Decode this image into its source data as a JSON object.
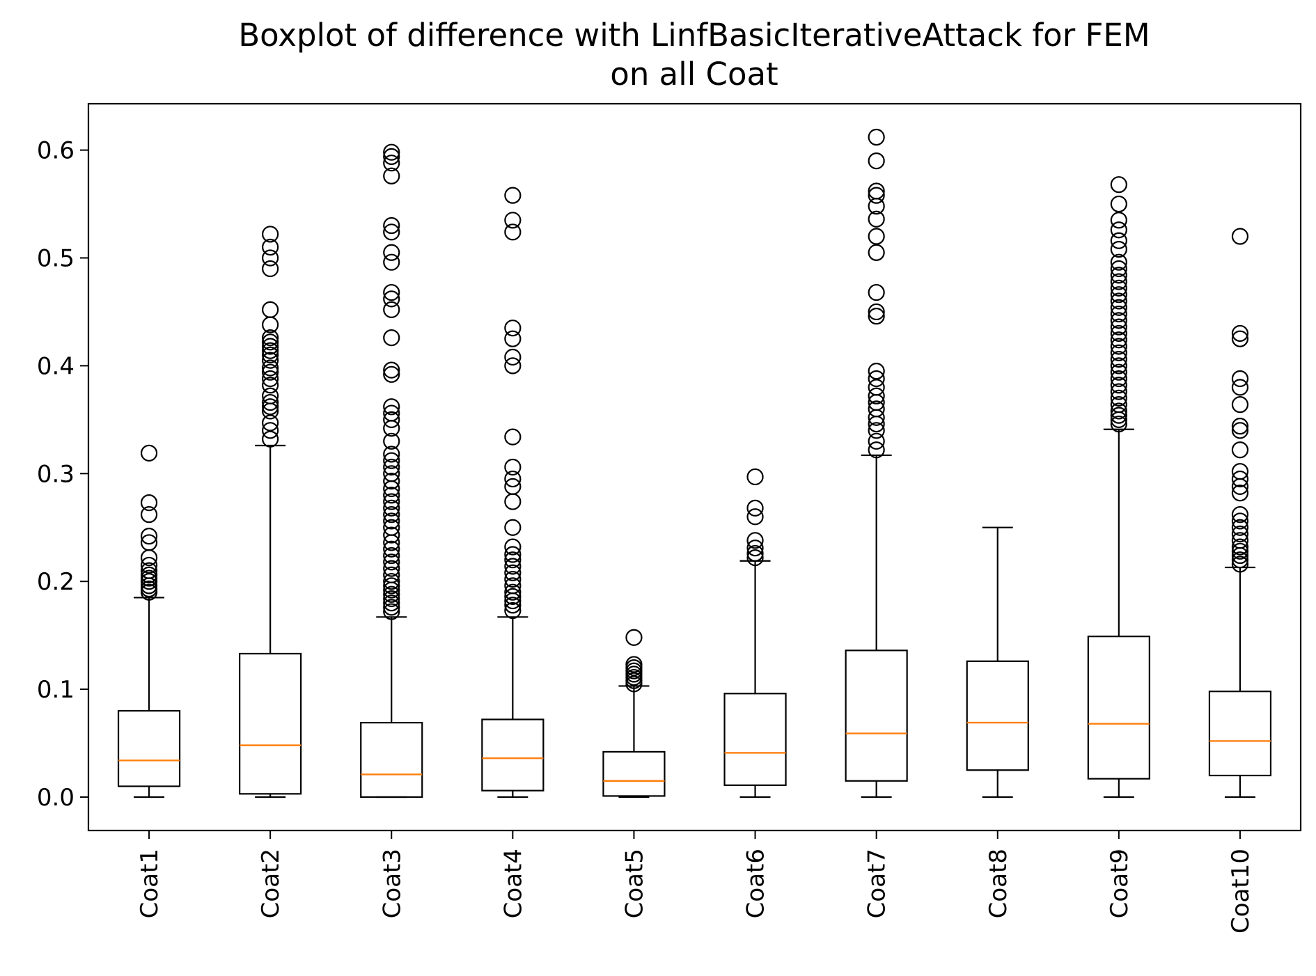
{
  "chart_data": {
    "type": "boxplot",
    "title_lines": [
      "Boxplot of difference with LinfBasicIterativeAttack for FEM",
      "on all Coat"
    ],
    "xlabel": "",
    "ylabel": "",
    "ylim": [
      -0.031,
      0.643
    ],
    "yticks": [
      0.0,
      0.1,
      0.2,
      0.3,
      0.4,
      0.5,
      0.6
    ],
    "ytick_labels": [
      "0.0",
      "0.1",
      "0.2",
      "0.3",
      "0.4",
      "0.5",
      "0.6"
    ],
    "grid": false,
    "legend": "none",
    "categories": [
      "Coat1",
      "Coat2",
      "Coat3",
      "Coat4",
      "Coat5",
      "Coat6",
      "Coat7",
      "Coat8",
      "Coat9",
      "Coat10"
    ],
    "colors": {
      "box": "#000000",
      "median": "#ff7f0e",
      "flier": "#000000"
    },
    "boxes": [
      {
        "label": "Coat1",
        "whisker_low": 0.0,
        "q1": 0.01,
        "median": 0.034,
        "q3": 0.08,
        "whisker_high": 0.185,
        "fliers": [
          0.19,
          0.193,
          0.196,
          0.2,
          0.203,
          0.206,
          0.21,
          0.215,
          0.222,
          0.236,
          0.242,
          0.262,
          0.273,
          0.319
        ]
      },
      {
        "label": "Coat2",
        "whisker_low": 0.0,
        "q1": 0.003,
        "median": 0.048,
        "q3": 0.133,
        "whisker_high": 0.326,
        "fliers": [
          0.332,
          0.34,
          0.347,
          0.358,
          0.362,
          0.366,
          0.372,
          0.382,
          0.388,
          0.394,
          0.398,
          0.405,
          0.41,
          0.414,
          0.418,
          0.422,
          0.426,
          0.438,
          0.452,
          0.49,
          0.5,
          0.51,
          0.522
        ]
      },
      {
        "label": "Coat3",
        "whisker_low": 0.0,
        "q1": 0.0,
        "median": 0.021,
        "q3": 0.069,
        "whisker_high": 0.167,
        "fliers": [
          0.172,
          0.176,
          0.18,
          0.184,
          0.188,
          0.192,
          0.196,
          0.2,
          0.206,
          0.212,
          0.218,
          0.224,
          0.23,
          0.236,
          0.243,
          0.25,
          0.256,
          0.262,
          0.268,
          0.274,
          0.28,
          0.286,
          0.293,
          0.3,
          0.306,
          0.312,
          0.318,
          0.33,
          0.342,
          0.35,
          0.356,
          0.362,
          0.392,
          0.396,
          0.426,
          0.452,
          0.462,
          0.468,
          0.496,
          0.505,
          0.524,
          0.53,
          0.576,
          0.588,
          0.594,
          0.598
        ]
      },
      {
        "label": "Coat4",
        "whisker_low": 0.0,
        "q1": 0.006,
        "median": 0.036,
        "q3": 0.072,
        "whisker_high": 0.167,
        "fliers": [
          0.173,
          0.178,
          0.182,
          0.186,
          0.19,
          0.196,
          0.202,
          0.208,
          0.214,
          0.22,
          0.225,
          0.232,
          0.25,
          0.274,
          0.288,
          0.295,
          0.306,
          0.334,
          0.4,
          0.408,
          0.425,
          0.435,
          0.524,
          0.535,
          0.558
        ]
      },
      {
        "label": "Coat5",
        "whisker_low": 0.0,
        "q1": 0.001,
        "median": 0.015,
        "q3": 0.042,
        "whisker_high": 0.103,
        "fliers": [
          0.105,
          0.108,
          0.111,
          0.114,
          0.117,
          0.12,
          0.123,
          0.148
        ]
      },
      {
        "label": "Coat6",
        "whisker_low": 0.0,
        "q1": 0.011,
        "median": 0.041,
        "q3": 0.096,
        "whisker_high": 0.219,
        "fliers": [
          0.222,
          0.226,
          0.231,
          0.238,
          0.26,
          0.268,
          0.297
        ]
      },
      {
        "label": "Coat7",
        "whisker_low": 0.0,
        "q1": 0.015,
        "median": 0.059,
        "q3": 0.136,
        "whisker_high": 0.317,
        "fliers": [
          0.322,
          0.33,
          0.34,
          0.346,
          0.352,
          0.36,
          0.366,
          0.372,
          0.38,
          0.388,
          0.395,
          0.446,
          0.45,
          0.468,
          0.505,
          0.52,
          0.536,
          0.548,
          0.558,
          0.562,
          0.59,
          0.612
        ]
      },
      {
        "label": "Coat8",
        "whisker_low": 0.0,
        "q1": 0.025,
        "median": 0.069,
        "q3": 0.126,
        "whisker_high": 0.25,
        "fliers": []
      },
      {
        "label": "Coat9",
        "whisker_low": 0.0,
        "q1": 0.017,
        "median": 0.068,
        "q3": 0.149,
        "whisker_high": 0.341,
        "fliers": [
          0.346,
          0.35,
          0.354,
          0.358,
          0.364,
          0.37,
          0.376,
          0.382,
          0.388,
          0.394,
          0.4,
          0.406,
          0.412,
          0.418,
          0.424,
          0.43,
          0.436,
          0.442,
          0.448,
          0.454,
          0.46,
          0.466,
          0.472,
          0.478,
          0.484,
          0.49,
          0.496,
          0.508,
          0.516,
          0.526,
          0.535,
          0.55,
          0.568
        ]
      },
      {
        "label": "Coat10",
        "whisker_low": 0.0,
        "q1": 0.02,
        "median": 0.052,
        "q3": 0.098,
        "whisker_high": 0.213,
        "fliers": [
          0.216,
          0.22,
          0.224,
          0.228,
          0.232,
          0.238,
          0.244,
          0.25,
          0.256,
          0.262,
          0.282,
          0.288,
          0.295,
          0.302,
          0.322,
          0.34,
          0.344,
          0.364,
          0.38,
          0.388,
          0.425,
          0.43,
          0.52
        ]
      }
    ]
  }
}
